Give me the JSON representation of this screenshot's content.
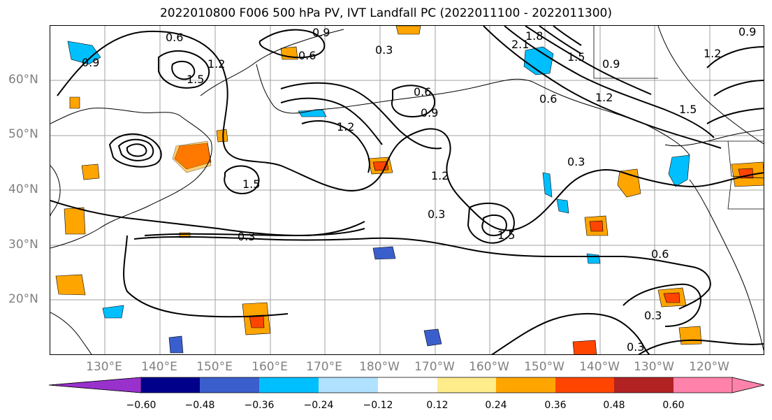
{
  "title": "2022010800 F006 500 hPa PV, IVT Landfall PC (2022011100 - 2022011300)",
  "lat_labels": [
    "60°N",
    "50°N",
    "40°N",
    "30°N",
    "20°N"
  ],
  "lon_labels": [
    "130°E",
    "140°E",
    "150°E",
    "160°E",
    "170°E",
    "180°W",
    "170°W",
    "160°W",
    "150°W",
    "140°W",
    "130°W",
    "120°W"
  ],
  "contour_labels": {
    "c06a": "0.6",
    "c06b": "0.6",
    "c06c": "0.6",
    "c06d": "0.6",
    "c06e": "0.6",
    "c09a": "0.9",
    "c09b": "0.9",
    "c09c": "0.9",
    "c09d": "0.9",
    "c09e": "0.9",
    "c12a": "1.2",
    "c12b": "1.2",
    "c12c": "1.2",
    "c12d": "1.2",
    "c12e": "1.2",
    "c15a": "1.5",
    "c15b": "1.5",
    "c15c": "1.5",
    "c15d": "1.5",
    "c15e": "1.5",
    "c18": "1.8",
    "c21": "2.1",
    "c03a": "0.3",
    "c03b": "0.3",
    "c03c": "0.3",
    "c03d": "0.3",
    "c03e": "0.3",
    "c03f": "0.3"
  },
  "colorbar": {
    "ticks": [
      "−0.60",
      "−0.48",
      "−0.36",
      "−0.24",
      "−0.12",
      "0.12",
      "0.24",
      "0.36",
      "0.48",
      "0.60"
    ],
    "colors": [
      "#9932cc",
      "#00008b",
      "#3a5fcd",
      "#00bfff",
      "#b0e2ff",
      "#ffffff",
      "#ffec8b",
      "#ffa500",
      "#ff4500",
      "#b22222",
      "#ff82ab"
    ]
  }
}
